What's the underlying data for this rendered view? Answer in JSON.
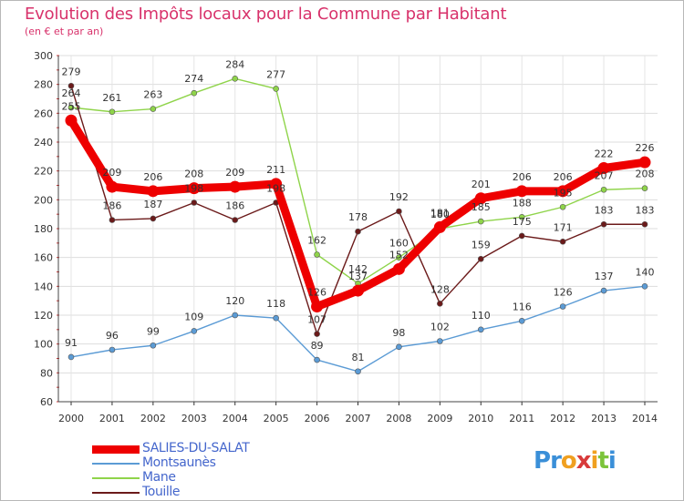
{
  "title": "Evolution des Impôts locaux pour la Commune par Habitant",
  "subtitle": "(en € et par an)",
  "brand": {
    "letters": [
      "P",
      "r",
      "o",
      "x",
      "i",
      "t",
      "i"
    ],
    "colors": [
      "#3a8fd8",
      "#3a8fd8",
      "#f0a020",
      "#d83a3a",
      "#f0a020",
      "#7cc43a",
      "#3a8fd8"
    ]
  },
  "chart_data": {
    "type": "line",
    "title": "Evolution des Impôts locaux pour la Commune par Habitant",
    "ylabel": "(en € et par an)",
    "xlabel": "",
    "categories": [
      "2000",
      "2001",
      "2002",
      "2003",
      "2004",
      "2005",
      "2006",
      "2007",
      "2008",
      "2009",
      "2010",
      "2011",
      "2012",
      "2013",
      "2014"
    ],
    "ylim": [
      60,
      300
    ],
    "yticks": [
      "60",
      "80",
      "100",
      "120",
      "140",
      "160",
      "180",
      "200",
      "220",
      "240",
      "260",
      "280",
      "300"
    ],
    "grid": true,
    "legend_position": "bottom-left",
    "series": [
      {
        "name": "SALIES-DU-SALAT",
        "color": "#ee0000",
        "values": [
          255,
          209,
          206,
          208,
          209,
          211,
          126,
          137,
          152,
          181,
          201,
          206,
          206,
          222,
          226
        ],
        "labels": [
          "255",
          "209",
          "206",
          "208",
          "209",
          "211",
          "126",
          "137",
          "152",
          "181",
          "201",
          "206",
          "206",
          "222",
          "226"
        ]
      },
      {
        "name": "Montsaunès",
        "color": "#5b9bd5",
        "values": [
          91,
          96,
          99,
          109,
          120,
          118,
          89,
          81,
          98,
          102,
          110,
          116,
          126,
          137,
          140
        ],
        "labels": [
          "91",
          "96",
          "99",
          "109",
          "120",
          "118",
          "89",
          "81",
          "98",
          "102",
          "110",
          "116",
          "126",
          "137",
          "140"
        ]
      },
      {
        "name": "Mane",
        "color": "#8fd44a",
        "values": [
          264,
          261,
          263,
          274,
          284,
          277,
          162,
          142,
          160,
          180,
          185,
          188,
          195,
          207,
          208
        ],
        "labels": [
          "264",
          "261",
          "263",
          "274",
          "284",
          "277",
          "162",
          "142",
          "160",
          "180",
          "185",
          "188",
          "195",
          "207",
          "208"
        ]
      },
      {
        "name": "Touille",
        "color": "#6b1a1a",
        "values": [
          279,
          186,
          187,
          198,
          186,
          198,
          107,
          178,
          192,
          128,
          159,
          175,
          171,
          183,
          183
        ],
        "labels": [
          "279",
          "186",
          "187",
          "198",
          "186",
          "198",
          "107",
          "178",
          "192",
          "128",
          "159",
          "175",
          "171",
          "183",
          "183"
        ]
      }
    ]
  }
}
